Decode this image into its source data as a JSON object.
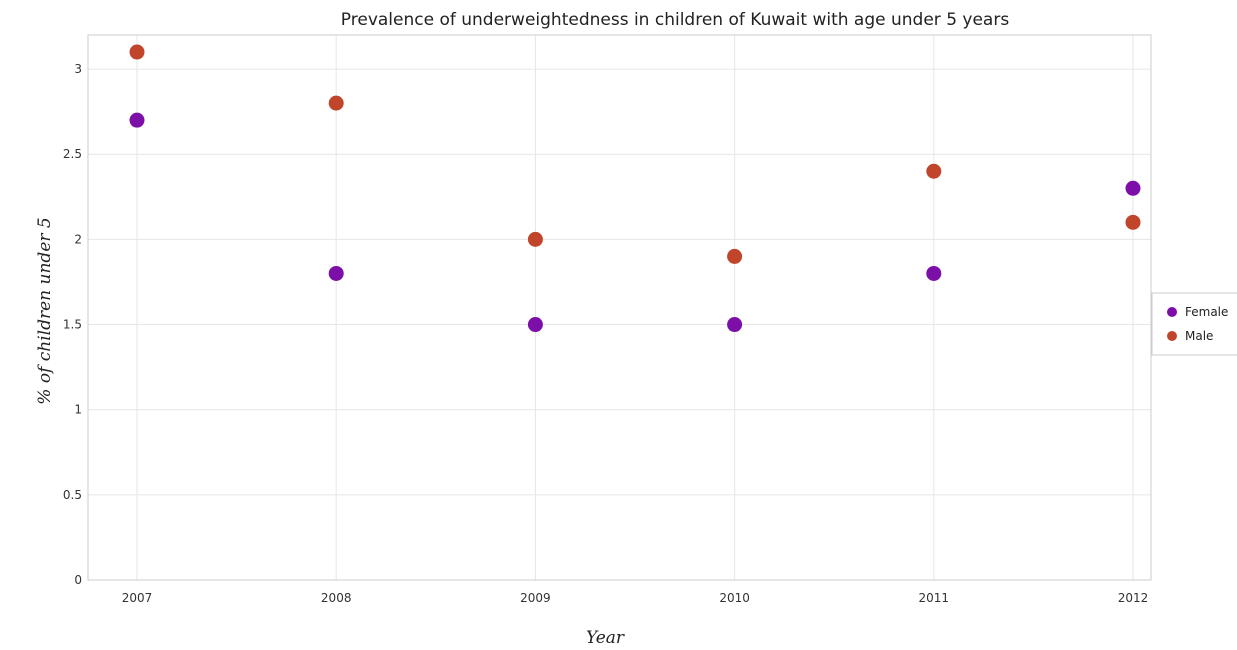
{
  "chart_data": {
    "type": "scatter",
    "title": "Prevalence of underweightedness in children of Kuwait with age under 5 years",
    "xlabel": "Year",
    "ylabel": "% of children under 5",
    "categories": [
      "2007",
      "2008",
      "2009",
      "2010",
      "2011",
      "2012"
    ],
    "y_ticks": [
      "0",
      "0.5",
      "1",
      "1.5",
      "2",
      "2.5",
      "3"
    ],
    "ylim": [
      0,
      3.2
    ],
    "grid": true,
    "legend_position": "right",
    "series": [
      {
        "name": "Female",
        "color": "#7b0fa8",
        "values": [
          2.7,
          1.8,
          1.5,
          1.5,
          1.8,
          2.3
        ]
      },
      {
        "name": "Male",
        "color": "#c0452a",
        "values": [
          3.1,
          2.8,
          2.0,
          1.9,
          2.4,
          2.1
        ]
      }
    ]
  }
}
